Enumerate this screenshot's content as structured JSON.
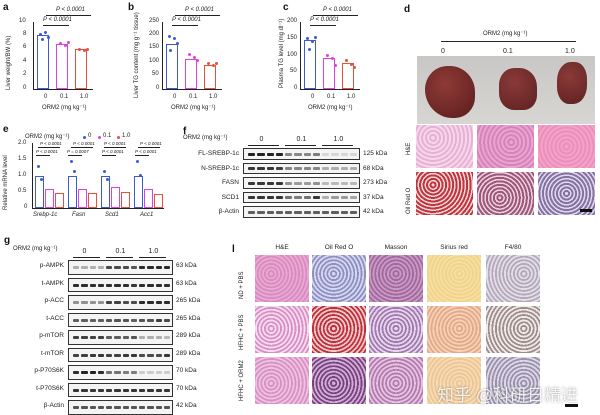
{
  "figure": {
    "panels": {
      "a": {
        "label": "a"
      },
      "b": {
        "label": "b"
      },
      "c": {
        "label": "c"
      },
      "d": {
        "label": "d"
      },
      "e": {
        "label": "e"
      },
      "f": {
        "label": "f"
      },
      "g": {
        "label": "g"
      },
      "l": {
        "label": "l"
      }
    },
    "dose_axis_title": "ORM2 (mg kg⁻¹)",
    "dose_legend_title": "ORM2 (mg kg⁻¹)",
    "doses": [
      "0",
      "0.1",
      "1.0"
    ],
    "colors": {
      "dose_0": "#3b5bd6",
      "dose_0_1": "#e040e0",
      "dose_1_0": "#e8503a"
    },
    "p_value": "P < 0.0001"
  },
  "chart_data": [
    {
      "panel": "a",
      "type": "bar",
      "categories": [
        "0",
        "0.1",
        "1.0"
      ],
      "values": [
        8.1,
        6.8,
        5.9
      ],
      "xlabel": "ORM2 (mg kg⁻¹)",
      "ylabel": "Liver weight/BW (%)",
      "yticks": [
        "0",
        "2",
        "4",
        "6",
        "8",
        "10"
      ],
      "ylim": [
        0,
        10
      ],
      "annotations": [
        "P < 0.0001",
        "P < 0.0001"
      ]
    },
    {
      "panel": "b",
      "type": "bar",
      "categories": [
        "0",
        "0.1",
        "1.0"
      ],
      "values": [
        168,
        112,
        88
      ],
      "xlabel": "ORM2 (mg kg⁻¹)",
      "ylabel": "Liver TG content (mg g⁻¹ tissue)",
      "yticks": [
        "0",
        "50",
        "100",
        "150",
        "200",
        "250"
      ],
      "ylim": [
        0,
        250
      ],
      "annotations": [
        "P < 0.0001",
        "P < 0.0001"
      ]
    },
    {
      "panel": "c",
      "type": "bar",
      "categories": [
        "0",
        "0.1",
        "1.0"
      ],
      "values": [
        147,
        93,
        77
      ],
      "xlabel": "ORM2 (mg kg⁻¹)",
      "ylabel": "Plasma TG level (mg dl⁻¹)",
      "yticks": [
        "0",
        "50",
        "100",
        "150",
        "200"
      ],
      "ylim": [
        0,
        200
      ],
      "annotations": [
        "P < 0.0001",
        "P < 0.0001"
      ]
    },
    {
      "panel": "e",
      "type": "bar",
      "categories": [
        "Srebp-1c",
        "Fasn",
        "Scd1",
        "Acc1"
      ],
      "series": [
        {
          "name": "0",
          "values": [
            1.0,
            1.0,
            1.0,
            1.0
          ]
        },
        {
          "name": "0.1",
          "values": [
            0.58,
            0.58,
            0.65,
            0.58
          ]
        },
        {
          "name": "1.0",
          "values": [
            0.45,
            0.45,
            0.5,
            0.42
          ]
        }
      ],
      "legend_title": "ORM2 (mg kg⁻¹)",
      "ylabel": "Relative mRNA level",
      "yticks": [
        "0",
        "0.5",
        "1.0",
        "1.5",
        "2.0"
      ],
      "ylim": [
        0,
        2.0
      ],
      "annotations": [
        {
          "gene": "Srebp-1c",
          "top": "P < 0.0001",
          "bottom": "P < 0.0001"
        },
        {
          "gene": "Fasn",
          "top": "P < 0.0001",
          "bottom": "P = 0.0007"
        },
        {
          "gene": "Scd1",
          "top": "P < 0.0001",
          "bottom": "P < 0.0001"
        },
        {
          "gene": "Acc1",
          "top": "P < 0.0001",
          "bottom": "P < 0.0001"
        }
      ]
    }
  ],
  "panel_d": {
    "header": "ORM2 (mg kg⁻¹)",
    "columns": [
      "0",
      "0.1",
      "1.0"
    ],
    "rows": [
      "H&E",
      "Oil Red O"
    ]
  },
  "panel_f": {
    "header": "ORM2 (mg kg⁻¹)",
    "groups": [
      "0",
      "0.1",
      "1.0"
    ],
    "blots": [
      {
        "protein": "FL-SREBP-1c",
        "kda": "125 kDa",
        "intensity": [
          1,
          1,
          1,
          1,
          0.5,
          0.5,
          0.5,
          0.55,
          0.1,
          0.1,
          0.1,
          0.1
        ]
      },
      {
        "protein": "N-SREBP-1c",
        "kda": "68 kDa",
        "intensity": [
          0.9,
          0.9,
          0.9,
          0.85,
          0.5,
          0.5,
          0.5,
          0.5,
          0.3,
          0.3,
          0.3,
          0.3
        ]
      },
      {
        "protein": "FASN",
        "kda": "273 kDa",
        "intensity": [
          0.9,
          0.9,
          0.9,
          0.9,
          0.45,
          0.4,
          0.4,
          0.45,
          0.25,
          0.25,
          0.25,
          0.25
        ]
      },
      {
        "protein": "SCD1",
        "kda": "37 kDa",
        "intensity": [
          0.9,
          0.9,
          0.9,
          0.9,
          0.6,
          0.55,
          0.6,
          0.9,
          0.3,
          0.4,
          0.4,
          0.35
        ]
      },
      {
        "protein": "β-Actin",
        "kda": "42 kDa",
        "intensity": [
          0.7,
          0.7,
          0.7,
          0.7,
          0.7,
          0.7,
          0.7,
          0.7,
          0.7,
          0.7,
          0.7,
          0.7
        ]
      }
    ]
  },
  "panel_g": {
    "header": "ORM2 (mg kg⁻¹)",
    "groups": [
      "0",
      "0.1",
      "1.0"
    ],
    "blots": [
      {
        "protein": "p-AMPK",
        "kda": "63 kDa",
        "intensity": [
          0.3,
          0.3,
          0.3,
          0.3,
          0.8,
          0.8,
          0.8,
          0.75,
          0.95,
          0.95,
          0.95,
          0.95
        ]
      },
      {
        "protein": "t-AMPK",
        "kda": "63 kDa",
        "intensity": [
          0.95,
          0.95,
          0.95,
          0.95,
          0.95,
          0.95,
          0.95,
          0.9,
          0.95,
          0.95,
          0.95,
          0.95
        ]
      },
      {
        "protein": "p-ACC",
        "kda": "265 kDa",
        "intensity": [
          0.45,
          0.45,
          0.45,
          0.45,
          0.85,
          0.85,
          0.8,
          0.8,
          0.95,
          0.95,
          0.95,
          0.95
        ]
      },
      {
        "protein": "t-ACC",
        "kda": "265 kDa",
        "intensity": [
          0.7,
          0.7,
          0.7,
          0.7,
          0.75,
          0.75,
          0.75,
          0.7,
          0.75,
          0.75,
          0.85,
          0.8
        ]
      },
      {
        "protein": "p-mTOR",
        "kda": "289 kDa",
        "intensity": [
          0.85,
          0.85,
          0.85,
          0.85,
          0.7,
          0.7,
          0.7,
          0.75,
          0.3,
          0.3,
          0.3,
          0.25
        ]
      },
      {
        "protein": "t-mTOR",
        "kda": "289 kDa",
        "intensity": [
          0.85,
          0.85,
          0.9,
          0.9,
          0.85,
          0.85,
          0.9,
          0.9,
          0.8,
          0.8,
          0.8,
          0.9
        ]
      },
      {
        "protein": "p-P70S6K",
        "kda": "70 kDa",
        "intensity": [
          0.95,
          1,
          1,
          0.95,
          0.6,
          0.6,
          0.55,
          0.55,
          0.15,
          0.15,
          0.15,
          0.15
        ]
      },
      {
        "protein": "t-P70S6K",
        "kda": "70 kDa",
        "intensity": [
          0.9,
          0.9,
          0.9,
          0.9,
          0.9,
          0.9,
          0.9,
          0.9,
          0.9,
          0.9,
          0.9,
          0.9
        ]
      },
      {
        "protein": "β-Actin",
        "kda": "42 kDa",
        "intensity": [
          0.75,
          0.75,
          0.75,
          0.75,
          0.75,
          0.75,
          0.75,
          0.75,
          0.75,
          0.75,
          0.75,
          0.75
        ]
      }
    ]
  },
  "panel_l": {
    "columns": [
      "H&E",
      "Oil Red O",
      "Masson",
      "Sirius red",
      "F4/80"
    ],
    "rows": [
      "ND + PBS",
      "HFHC + PBS",
      "HFHC + ORM2"
    ]
  },
  "watermark": "知乎 @科研日精进"
}
